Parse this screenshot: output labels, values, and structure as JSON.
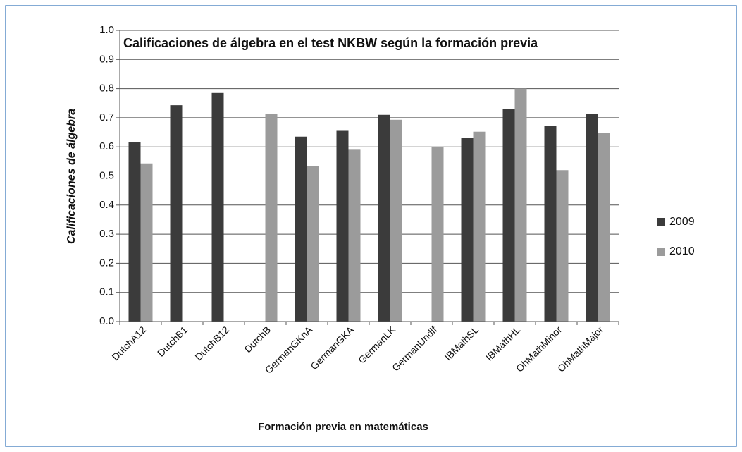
{
  "chart_data": {
    "type": "bar",
    "title": "Calificaciones de álgebra en el test NKBW según la formación previa",
    "x_label": "Formación previa en matemáticas",
    "y_label": "Calificaciones de álgebra",
    "categories": [
      "DutchA12",
      "DutchB1",
      "DutchB12",
      "DutchB",
      "GermanGKnA",
      "GermanGKA",
      "GermanLK",
      "GermanUndif",
      "IBMathSL",
      "IBMathHL",
      "OhMathMinor",
      "OhMathMajor"
    ],
    "series": [
      {
        "name": "2009",
        "color": "#3b3b3b",
        "values": [
          0.615,
          0.743,
          0.785,
          null,
          0.635,
          0.655,
          0.71,
          null,
          0.63,
          0.73,
          0.672,
          0.713
        ]
      },
      {
        "name": "2010",
        "color": "#9b9b9b",
        "values": [
          0.543,
          null,
          null,
          0.713,
          0.535,
          0.59,
          0.693,
          0.6,
          0.652,
          0.8,
          0.52,
          0.647
        ]
      }
    ],
    "ylim": [
      0,
      1
    ],
    "yticks": [
      {
        "value": 0,
        "label": "0.0"
      },
      0.1,
      0.2,
      0.3,
      0.4,
      0.5,
      0.6,
      0.7,
      0.8,
      0.9,
      {
        "value": 1,
        "label": "1.0"
      }
    ],
    "grid": true,
    "legend": "right"
  }
}
